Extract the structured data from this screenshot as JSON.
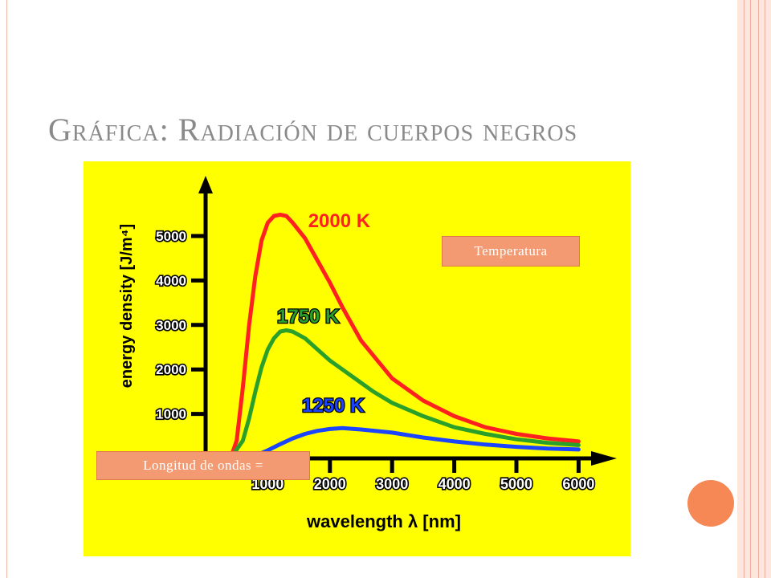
{
  "slide": {
    "title": "Gráfica: Radiación de cuerpos negros"
  },
  "callouts": {
    "temperature": "Temperatura",
    "wavelength": "Longitud de ondas ="
  },
  "colors": {
    "panel_bg": "#ffff00",
    "axis": "#000000",
    "tick_label": "#ffffff",
    "series_2000": "#ff2020",
    "series_1750": "#2aa02a",
    "series_1250": "#1a44ff",
    "accent_orange": "#f58855"
  },
  "chart_data": {
    "type": "line",
    "title": "",
    "xlabel": "wavelength λ [nm]",
    "ylabel": "energy density [J/m⁴]",
    "xlim": [
      0,
      6300
    ],
    "ylim": [
      0,
      5900
    ],
    "xticks": [
      1000,
      2000,
      3000,
      4000,
      5000,
      6000
    ],
    "yticks": [
      1000,
      2000,
      3000,
      4000,
      5000
    ],
    "grid": false,
    "series": [
      {
        "name": "2000 K",
        "color": "#ff2020",
        "points": [
          [
            400,
            0
          ],
          [
            500,
            400
          ],
          [
            600,
            1600
          ],
          [
            700,
            3000
          ],
          [
            800,
            4100
          ],
          [
            900,
            4900
          ],
          [
            1000,
            5300
          ],
          [
            1100,
            5450
          ],
          [
            1200,
            5480
          ],
          [
            1300,
            5450
          ],
          [
            1400,
            5300
          ],
          [
            1600,
            4950
          ],
          [
            1800,
            4450
          ],
          [
            2000,
            3950
          ],
          [
            2200,
            3400
          ],
          [
            2500,
            2650
          ],
          [
            3000,
            1800
          ],
          [
            3500,
            1300
          ],
          [
            4000,
            950
          ],
          [
            4500,
            700
          ],
          [
            5000,
            550
          ],
          [
            5500,
            450
          ],
          [
            6000,
            380
          ]
        ]
      },
      {
        "name": "1750 K",
        "color": "#2aa02a",
        "points": [
          [
            400,
            0
          ],
          [
            600,
            400
          ],
          [
            700,
            900
          ],
          [
            800,
            1500
          ],
          [
            900,
            2050
          ],
          [
            1000,
            2450
          ],
          [
            1100,
            2700
          ],
          [
            1200,
            2850
          ],
          [
            1300,
            2880
          ],
          [
            1400,
            2850
          ],
          [
            1600,
            2700
          ],
          [
            1800,
            2450
          ],
          [
            2000,
            2200
          ],
          [
            2300,
            1900
          ],
          [
            2700,
            1500
          ],
          [
            3000,
            1250
          ],
          [
            3500,
            950
          ],
          [
            4000,
            700
          ],
          [
            4500,
            550
          ],
          [
            5000,
            430
          ],
          [
            5500,
            350
          ],
          [
            6000,
            300
          ]
        ]
      },
      {
        "name": "1250 K",
        "color": "#1a44ff",
        "points": [
          [
            600,
            0
          ],
          [
            800,
            60
          ],
          [
            1000,
            180
          ],
          [
            1200,
            320
          ],
          [
            1400,
            450
          ],
          [
            1600,
            550
          ],
          [
            1800,
            620
          ],
          [
            2000,
            660
          ],
          [
            2200,
            680
          ],
          [
            2500,
            650
          ],
          [
            3000,
            580
          ],
          [
            3500,
            470
          ],
          [
            4000,
            380
          ],
          [
            4500,
            310
          ],
          [
            5000,
            260
          ],
          [
            5500,
            220
          ],
          [
            6000,
            200
          ]
        ]
      }
    ],
    "series_label_positions": {
      "2000 K": [
        1650,
        5200
      ],
      "1750 K": [
        1150,
        3050
      ],
      "1250 K": [
        1550,
        1050
      ]
    }
  }
}
